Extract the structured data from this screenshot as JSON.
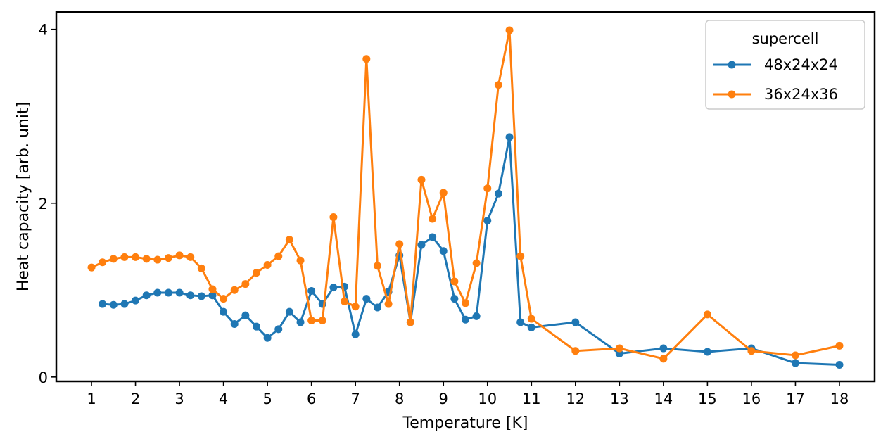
{
  "chart_data": {
    "type": "line",
    "title": "",
    "xlabel": "Temperature [K]",
    "ylabel": "Heat capacity [arb. unit]",
    "xlim": [
      0.2,
      18.8
    ],
    "ylim": [
      -0.05,
      4.2
    ],
    "xticks": [
      1,
      2,
      3,
      4,
      5,
      6,
      7,
      8,
      9,
      10,
      11,
      12,
      13,
      14,
      15,
      16,
      17,
      18
    ],
    "xtick_labels": [
      "1",
      "2",
      "3",
      "4",
      "5",
      "6",
      "7",
      "8",
      "9",
      "10",
      "11",
      "12",
      "13",
      "14",
      "15",
      "16",
      "17",
      "18"
    ],
    "yticks": [
      0,
      2,
      4
    ],
    "ytick_labels": [
      "0",
      "2",
      "4"
    ],
    "legend": {
      "title": "supercell",
      "position": "top-right"
    },
    "series": [
      {
        "name": "48x24x24",
        "color": "#1f77b4",
        "x": [
          1.25,
          1.5,
          1.75,
          2.0,
          2.25,
          2.5,
          2.75,
          3.0,
          3.25,
          3.5,
          3.75,
          4.0,
          4.25,
          4.5,
          4.75,
          5.0,
          5.25,
          5.5,
          5.75,
          6.0,
          6.25,
          6.5,
          6.75,
          7.0,
          7.25,
          7.5,
          7.75,
          8.0,
          8.25,
          8.5,
          8.75,
          9.0,
          9.25,
          9.5,
          9.75,
          10.0,
          10.25,
          10.5,
          10.75,
          11.0,
          12.0,
          13.0,
          14.0,
          15.0,
          16.0,
          17.0,
          18.0
        ],
        "y": [
          0.84,
          0.83,
          0.84,
          0.88,
          0.94,
          0.97,
          0.97,
          0.97,
          0.94,
          0.93,
          0.94,
          0.75,
          0.61,
          0.71,
          0.58,
          0.45,
          0.55,
          0.75,
          0.63,
          0.99,
          0.84,
          1.03,
          1.04,
          0.49,
          0.9,
          0.8,
          0.98,
          1.4,
          0.63,
          1.52,
          1.61,
          1.45,
          0.9,
          0.66,
          0.7,
          1.8,
          2.11,
          2.76,
          0.63,
          0.57,
          0.63,
          0.27,
          0.33,
          0.29,
          0.33,
          0.16,
          0.14
        ]
      },
      {
        "name": "36x24x36",
        "color": "#ff7f0e",
        "x": [
          1.0,
          1.25,
          1.5,
          1.75,
          2.0,
          2.25,
          2.5,
          2.75,
          3.0,
          3.25,
          3.5,
          3.75,
          4.0,
          4.25,
          4.5,
          4.75,
          5.0,
          5.25,
          5.5,
          5.75,
          6.0,
          6.25,
          6.5,
          6.75,
          7.0,
          7.25,
          7.5,
          7.75,
          8.0,
          8.25,
          8.5,
          8.75,
          9.0,
          9.25,
          9.5,
          9.75,
          10.0,
          10.25,
          10.5,
          10.75,
          11.0,
          12.0,
          13.0,
          14.0,
          15.0,
          16.0,
          17.0,
          18.0
        ],
        "y": [
          1.26,
          1.32,
          1.36,
          1.38,
          1.38,
          1.36,
          1.35,
          1.37,
          1.4,
          1.38,
          1.25,
          1.01,
          0.9,
          1.0,
          1.07,
          1.2,
          1.29,
          1.39,
          1.58,
          1.34,
          0.65,
          0.65,
          1.84,
          0.87,
          0.81,
          3.66,
          1.28,
          0.84,
          1.53,
          0.63,
          2.27,
          1.82,
          2.12,
          1.1,
          0.85,
          1.31,
          2.17,
          3.36,
          3.99,
          1.39,
          0.67,
          0.3,
          0.33,
          0.21,
          0.72,
          0.3,
          0.25,
          0.36
        ]
      }
    ]
  }
}
